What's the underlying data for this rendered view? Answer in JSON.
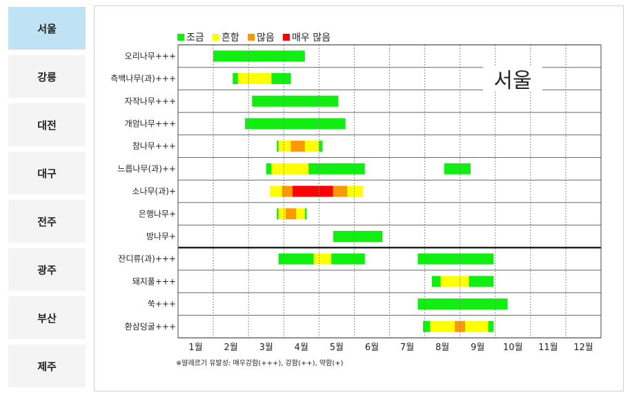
{
  "tabs": [
    {
      "label": "서울",
      "active": true
    },
    {
      "label": "강릉",
      "active": false
    },
    {
      "label": "대전",
      "active": false
    },
    {
      "label": "대구",
      "active": false
    },
    {
      "label": "전주",
      "active": false
    },
    {
      "label": "광주",
      "active": false
    },
    {
      "label": "부산",
      "active": false
    },
    {
      "label": "제주",
      "active": false
    }
  ],
  "chart_data": {
    "type": "bar",
    "orientation": "horizontal-timeline",
    "city_label": "서울",
    "legend": [
      {
        "key": "low",
        "label": "조금",
        "color": "#11ee11"
      },
      {
        "key": "mid",
        "label": "흔함",
        "color": "#ffff00"
      },
      {
        "key": "high",
        "label": "많음",
        "color": "#ff9900"
      },
      {
        "key": "vhigh",
        "label": "매우 많음",
        "color": "#ff0000"
      }
    ],
    "months": [
      "1월",
      "2월",
      "3월",
      "4월",
      "5월",
      "6월",
      "7월",
      "8월",
      "9월",
      "10월",
      "11월",
      "12월"
    ],
    "rows": [
      {
        "label": "오리나무+++",
        "segments": [
          {
            "start": 2.0,
            "end": 4.6,
            "level": "low"
          }
        ]
      },
      {
        "label": "측백나무(과)+++",
        "segments": [
          {
            "start": 2.55,
            "end": 2.7,
            "level": "low"
          },
          {
            "start": 2.7,
            "end": 3.65,
            "level": "mid"
          },
          {
            "start": 3.65,
            "end": 4.2,
            "level": "low"
          }
        ]
      },
      {
        "label": "자작나무+++",
        "segments": [
          {
            "start": 3.1,
            "end": 5.55,
            "level": "low"
          }
        ]
      },
      {
        "label": "개암나무+++",
        "segments": [
          {
            "start": 2.9,
            "end": 5.75,
            "level": "low"
          }
        ]
      },
      {
        "label": "참나무+++",
        "segments": [
          {
            "start": 3.8,
            "end": 3.85,
            "level": "low"
          },
          {
            "start": 3.85,
            "end": 4.2,
            "level": "mid"
          },
          {
            "start": 4.2,
            "end": 4.6,
            "level": "high"
          },
          {
            "start": 4.6,
            "end": 5.0,
            "level": "mid"
          },
          {
            "start": 5.0,
            "end": 5.1,
            "level": "low"
          }
        ]
      },
      {
        "label": "느릅나무(과)++",
        "segments": [
          {
            "start": 3.5,
            "end": 3.65,
            "level": "low"
          },
          {
            "start": 3.65,
            "end": 4.7,
            "level": "mid"
          },
          {
            "start": 4.7,
            "end": 6.3,
            "level": "low"
          },
          {
            "start": 8.55,
            "end": 9.3,
            "level": "low"
          }
        ]
      },
      {
        "label": "소나무(과)+",
        "segments": [
          {
            "start": 3.6,
            "end": 3.95,
            "level": "mid"
          },
          {
            "start": 3.95,
            "end": 4.25,
            "level": "high"
          },
          {
            "start": 4.25,
            "end": 5.4,
            "level": "vhigh"
          },
          {
            "start": 5.4,
            "end": 5.8,
            "level": "high"
          },
          {
            "start": 5.8,
            "end": 6.25,
            "level": "mid"
          }
        ]
      },
      {
        "label": "은행나무+",
        "segments": [
          {
            "start": 3.8,
            "end": 3.85,
            "level": "low"
          },
          {
            "start": 3.85,
            "end": 4.05,
            "level": "mid"
          },
          {
            "start": 4.05,
            "end": 4.35,
            "level": "high"
          },
          {
            "start": 4.35,
            "end": 4.6,
            "level": "mid"
          },
          {
            "start": 4.6,
            "end": 4.65,
            "level": "low"
          }
        ]
      },
      {
        "label": "방나무+",
        "segments": [
          {
            "start": 5.4,
            "end": 6.8,
            "level": "low"
          }
        ]
      },
      {
        "label": "잔디류(과)+++",
        "segments": [
          {
            "start": 3.85,
            "end": 4.85,
            "level": "low"
          },
          {
            "start": 4.85,
            "end": 5.35,
            "level": "mid"
          },
          {
            "start": 5.35,
            "end": 6.3,
            "level": "low"
          },
          {
            "start": 7.8,
            "end": 9.95,
            "level": "low"
          }
        ]
      },
      {
        "label": "돼지풀+++",
        "segments": [
          {
            "start": 8.2,
            "end": 8.45,
            "level": "low"
          },
          {
            "start": 8.45,
            "end": 9.25,
            "level": "mid"
          },
          {
            "start": 9.25,
            "end": 9.95,
            "level": "low"
          }
        ]
      },
      {
        "label": "쑥+++",
        "segments": [
          {
            "start": 7.8,
            "end": 10.35,
            "level": "low"
          }
        ]
      },
      {
        "label": "환삼덩굴+++",
        "segments": [
          {
            "start": 7.95,
            "end": 8.15,
            "level": "low"
          },
          {
            "start": 8.15,
            "end": 8.85,
            "level": "mid"
          },
          {
            "start": 8.85,
            "end": 9.15,
            "level": "high"
          },
          {
            "start": 9.15,
            "end": 9.8,
            "level": "mid"
          },
          {
            "start": 9.8,
            "end": 9.95,
            "level": "low"
          }
        ]
      }
    ],
    "group_separator_after_row": 8,
    "footnote": "※알레르기 유발성: 매우강함(+++), 강함(++), 약함(+)"
  }
}
